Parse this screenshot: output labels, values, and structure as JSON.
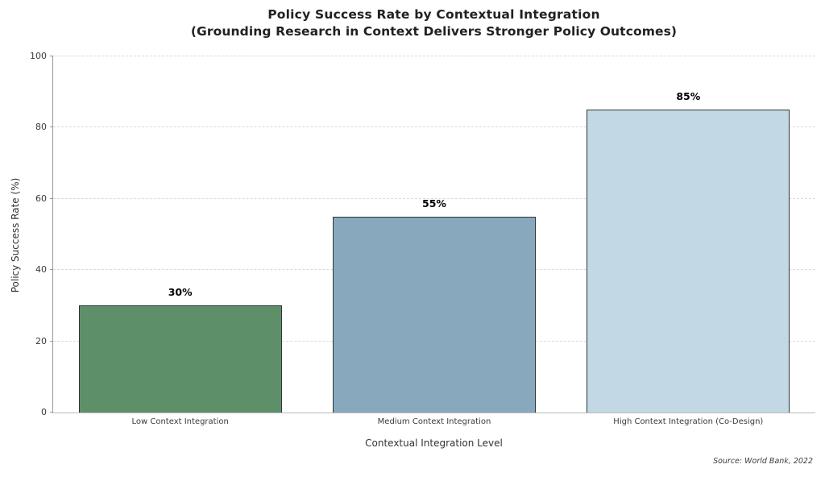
{
  "chart_data": {
    "type": "bar",
    "title": "Policy Success Rate by Contextual Integration",
    "subtitle": "(Grounding Research in Context Delivers Stronger Policy Outcomes)",
    "categories": [
      "Low Context Integration",
      "Medium Context Integration",
      "High Context Integration (Co-Design)"
    ],
    "values": [
      30,
      55,
      85
    ],
    "value_labels": [
      "30%",
      "55%",
      "85%"
    ],
    "bar_colors": [
      "#5d9068",
      "#88a8bd",
      "#c2d9e5"
    ],
    "bar_edge_color": "#2e3439",
    "xlabel": "Contextual Integration Level",
    "ylabel": "Policy Success Rate (%)",
    "ylim": [
      0,
      100
    ],
    "yticks": [
      0,
      20,
      40,
      60,
      80,
      100
    ],
    "grid": "horizontal dashed, behind bars",
    "legend": "none",
    "background_color": "#ffffff",
    "source": "Source: World Bank, 2022"
  }
}
